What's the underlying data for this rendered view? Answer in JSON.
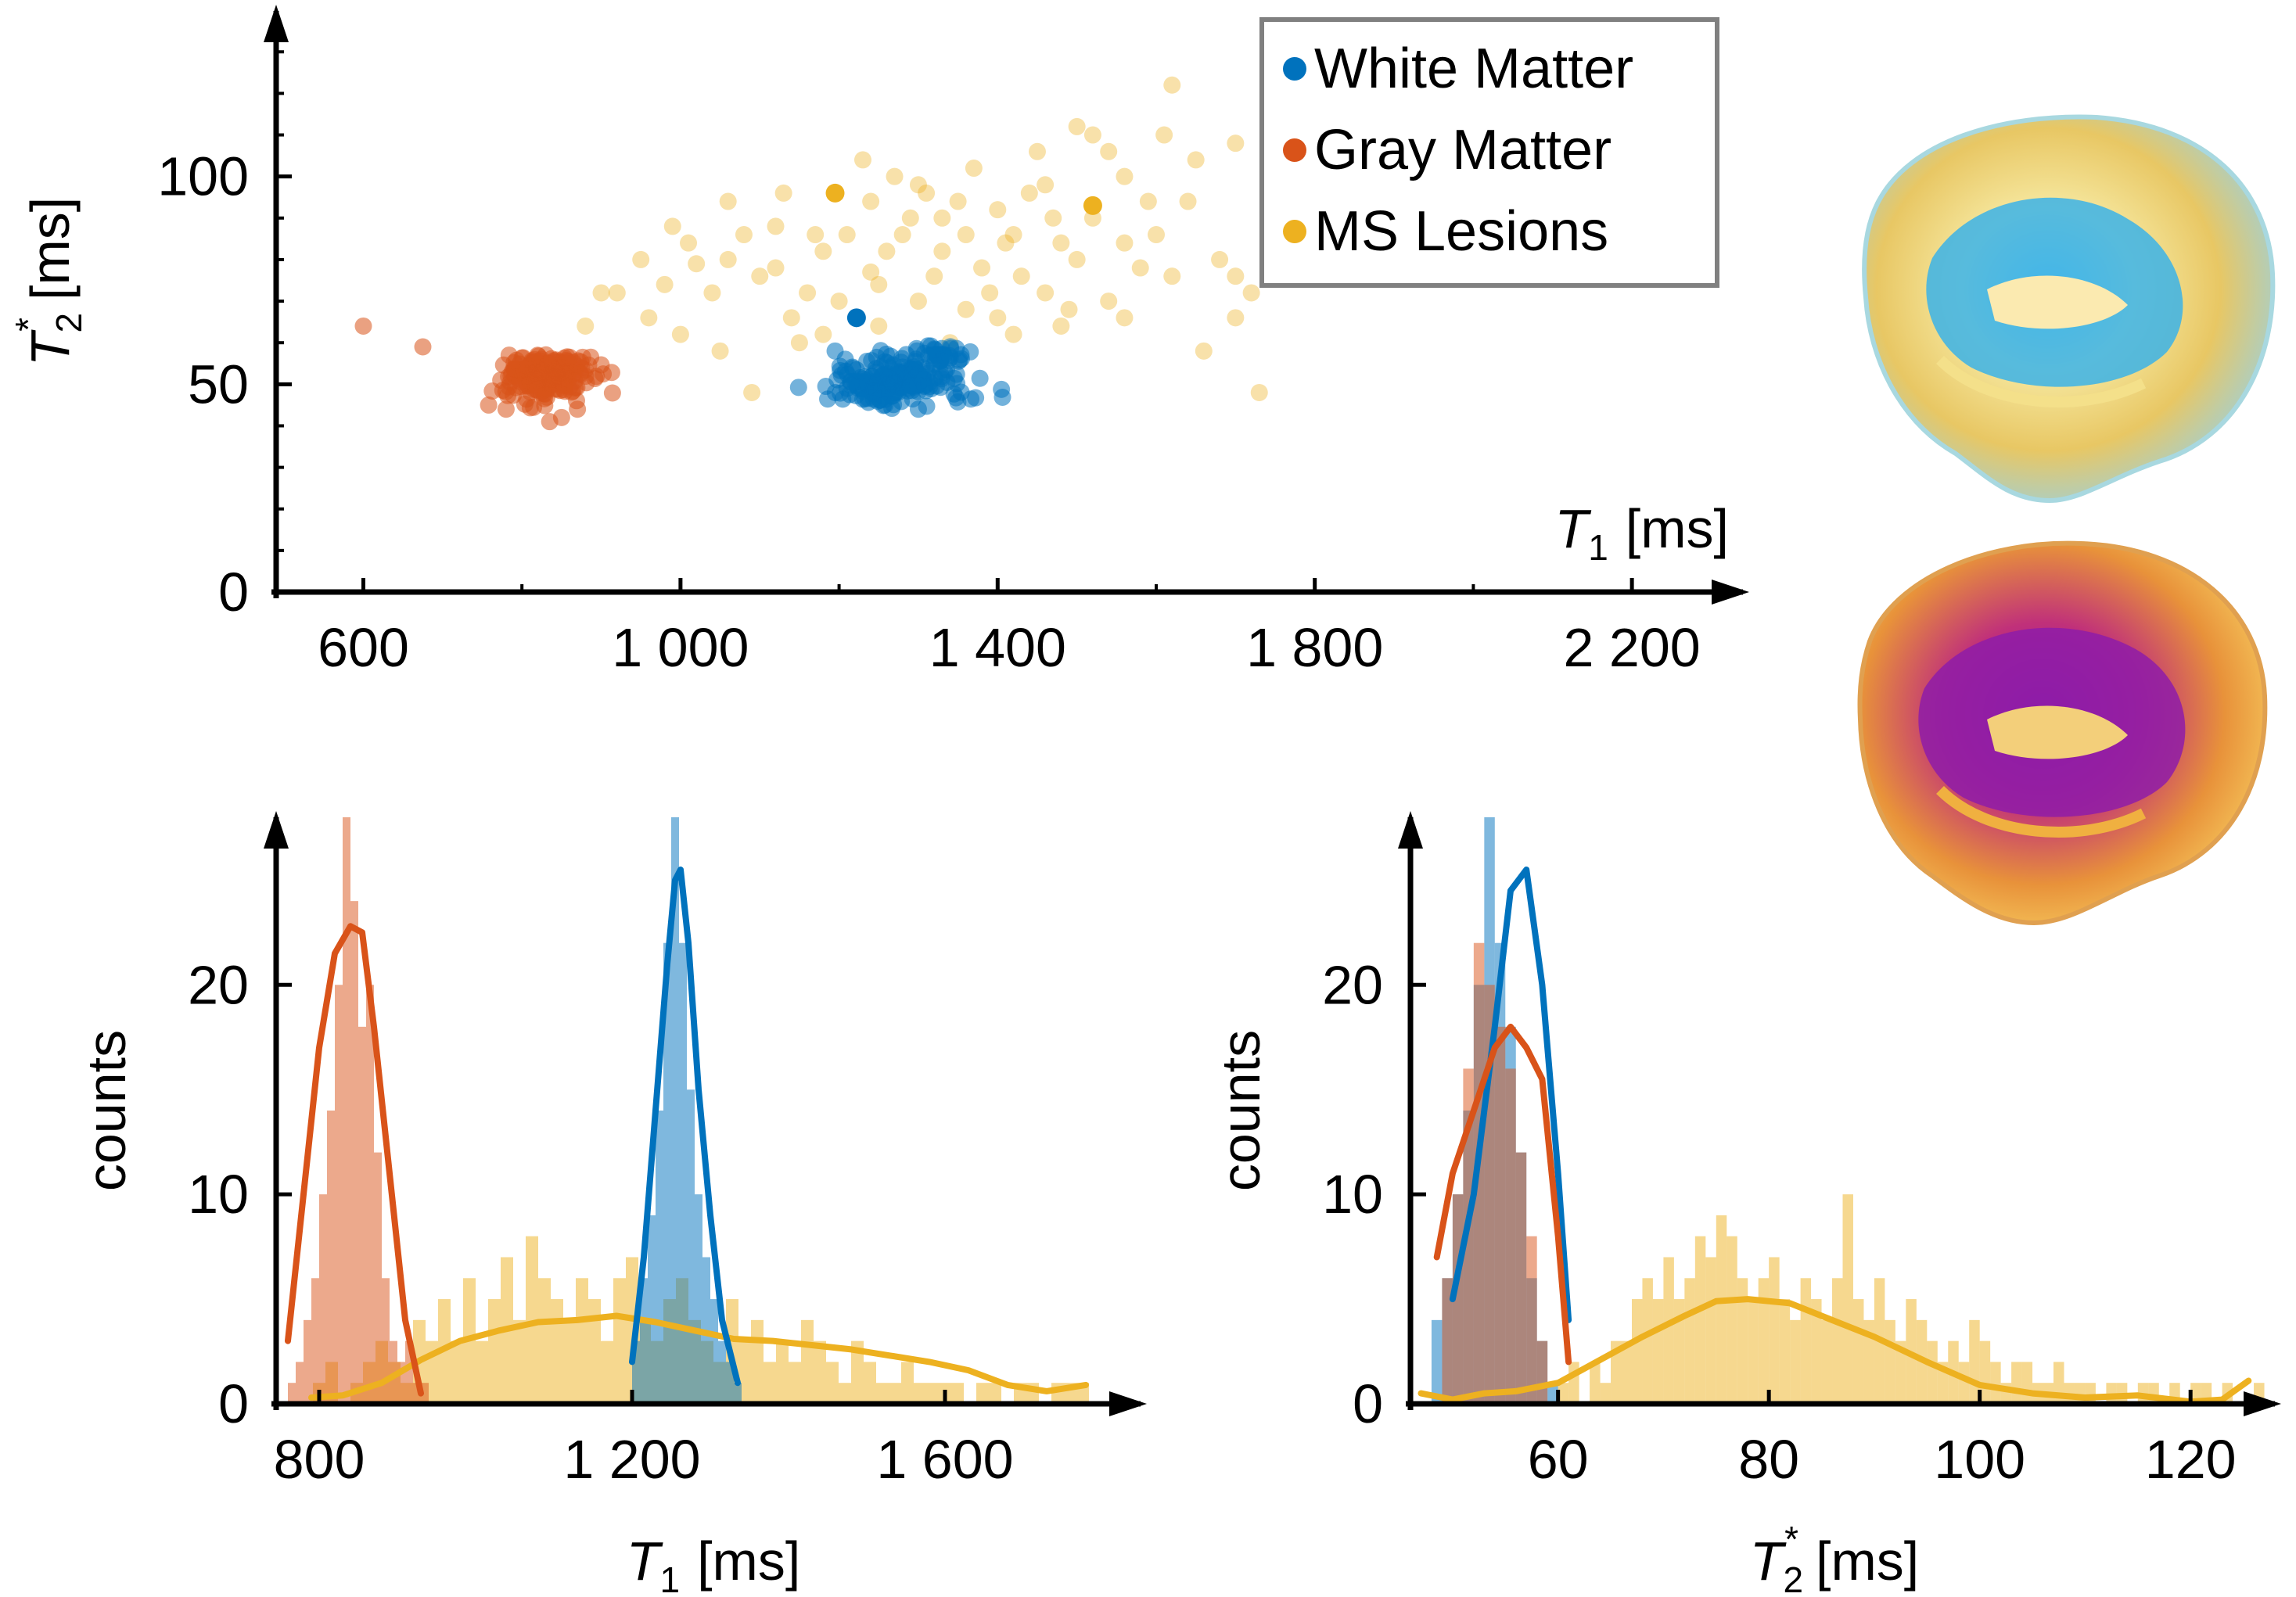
{
  "colors": {
    "white_matter": "#0072bd",
    "gray_matter": "#d95319",
    "ms_lesions": "#edb120",
    "axis": "#000000",
    "legend_border": "#808080"
  },
  "legend": {
    "items": [
      {
        "label": "White Matter",
        "color": "#0072bd"
      },
      {
        "label": "Gray Matter",
        "color": "#d95319"
      },
      {
        "label": "MS Lesions",
        "color": "#edb120"
      }
    ]
  },
  "images": [
    {
      "name": "brain-render-blue",
      "palette": "blue-yellow"
    },
    {
      "name": "brain-render-magma",
      "palette": "purple-orange"
    }
  ],
  "chart_data": [
    {
      "type": "scatter",
      "xlabel_main": "T",
      "xlabel_sub": "1",
      "xlabel_unit": "[ms]",
      "ylabel_main": "T",
      "ylabel_sub": "2",
      "ylabel_sup": "*",
      "ylabel_unit": "[ms]",
      "xlim": [
        490,
        2340
      ],
      "ylim": [
        0,
        150
      ],
      "xticks": [
        600,
        1000,
        1400,
        1800,
        2200
      ],
      "xtick_labels": [
        "600",
        "1 000",
        "1 400",
        "1 800",
        "2 200"
      ],
      "yticks": [
        0,
        50,
        100
      ],
      "ytick_labels": [
        "0",
        "50",
        "100"
      ],
      "legend_position": "top-right",
      "grid": false,
      "series": [
        {
          "name": "White Matter",
          "clusters": [
            {
              "cx": 1275,
              "cy": 51,
              "rx": 70,
              "ry": 5,
              "n": 190
            },
            {
              "cx": 1335,
              "cy": 57,
              "rx": 25,
              "ry": 2,
              "n": 25
            }
          ],
          "points": [
            [
              1222,
              66
            ],
            [
              1195,
              58
            ],
            [
              1258,
              45
            ],
            [
              1300,
              44
            ],
            [
              1210,
              49
            ]
          ]
        },
        {
          "name": "Gray Matter",
          "clusters": [
            {
              "cx": 830,
              "cy": 52,
              "rx": 45,
              "ry": 4.5,
              "n": 210
            }
          ],
          "points": [
            [
              600,
              64
            ],
            [
              675,
              59
            ],
            [
              758,
              45
            ],
            [
              780,
              44
            ],
            [
              835,
              41
            ],
            [
              850,
              42
            ],
            [
              870,
              44
            ]
          ]
        },
        {
          "name": "MS Lesions",
          "points": [
            [
              1195,
              96
            ],
            [
              1520,
              93
            ],
            [
              1810,
              148
            ],
            [
              1700,
              76
            ],
            [
              1760,
              86
            ],
            [
              1620,
              122
            ],
            [
              1650,
              104
            ],
            [
              1900,
              113
            ],
            [
              1860,
              124
            ],
            [
              1780,
              105
            ],
            [
              1450,
              106
            ],
            [
              1520,
              110
            ],
            [
              1300,
              98
            ],
            [
              1180,
              82
            ],
            [
              1100,
              76
            ],
            [
              1050,
              58
            ],
            [
              1020,
              79
            ],
            [
              950,
              80
            ],
            [
              920,
              72
            ],
            [
              990,
              88
            ],
            [
              1060,
              94
            ],
            [
              1120,
              88
            ],
            [
              1160,
              72
            ],
            [
              1240,
              77
            ],
            [
              1280,
              86
            ],
            [
              1330,
              90
            ],
            [
              1370,
              102
            ],
            [
              1400,
              92
            ],
            [
              1430,
              76
            ],
            [
              1480,
              84
            ],
            [
              1560,
              100
            ],
            [
              1600,
              86
            ],
            [
              1660,
              58
            ],
            [
              1720,
              72
            ],
            [
              1730,
              48
            ],
            [
              1700,
              66
            ],
            [
              1560,
              66
            ],
            [
              1480,
              64
            ],
            [
              1420,
              62
            ],
            [
              1360,
              68
            ],
            [
              1300,
              70
            ],
            [
              1250,
              64
            ],
            [
              1200,
              70
            ],
            [
              1140,
              66
            ],
            [
              1090,
              48
            ],
            [
              1060,
              80
            ],
            [
              1010,
              84
            ],
            [
              960,
              66
            ],
            [
              900,
              72
            ],
            [
              880,
              64
            ],
            [
              1230,
              104
            ],
            [
              1330,
              82
            ],
            [
              1390,
              72
            ],
            [
              1440,
              96
            ],
            [
              1500,
              80
            ],
            [
              1540,
              70
            ],
            [
              1580,
              78
            ],
            [
              1640,
              94
            ],
            [
              1680,
              80
            ],
            [
              1750,
              96
            ],
            [
              1800,
              84
            ],
            [
              1840,
              112
            ],
            [
              1880,
              100
            ],
            [
              1920,
              90
            ],
            [
              1130,
              96
            ],
            [
              1170,
              86
            ],
            [
              1210,
              86
            ],
            [
              1260,
              82
            ],
            [
              1320,
              76
            ],
            [
              1360,
              86
            ],
            [
              1410,
              84
            ],
            [
              1460,
              98
            ],
            [
              1500,
              112
            ],
            [
              1540,
              106
            ],
            [
              1610,
              110
            ],
            [
              1700,
              108
            ],
            [
              1520,
              90
            ],
            [
              1460,
              72
            ],
            [
              1400,
              66
            ],
            [
              1340,
              60
            ],
            [
              1290,
              90
            ],
            [
              1240,
              94
            ],
            [
              1180,
              62
            ],
            [
              1120,
              78
            ],
            [
              1080,
              86
            ],
            [
              1040,
              72
            ],
            [
              980,
              74
            ],
            [
              1000,
              62
            ],
            [
              1150,
              60
            ],
            [
              1270,
              100
            ],
            [
              1310,
              96
            ],
            [
              1350,
              94
            ],
            [
              1470,
              90
            ],
            [
              1590,
              94
            ],
            [
              1620,
              76
            ],
            [
              1560,
              84
            ],
            [
              1490,
              68
            ],
            [
              1420,
              86
            ],
            [
              1380,
              78
            ],
            [
              1250,
              74
            ]
          ]
        }
      ]
    },
    {
      "type": "histogram",
      "xlabel_main": "T",
      "xlabel_sub": "1",
      "xlabel_unit": "[ms]",
      "ylabel": "counts",
      "xlim": [
        745,
        1850
      ],
      "ylim": [
        0,
        28
      ],
      "xticks": [
        800,
        1200,
        1600
      ],
      "xtick_labels": [
        "800",
        "1 200",
        "1 600"
      ],
      "yticks": [
        0,
        10,
        20
      ],
      "ytick_labels": [
        "0",
        "10",
        "20"
      ],
      "series": [
        {
          "name": "Gray Matter",
          "bin_start": 760,
          "bin_width": 10,
          "counts": [
            1,
            2,
            4,
            6,
            10,
            14,
            20,
            28,
            24,
            18,
            20,
            12,
            6,
            3,
            2,
            3,
            1,
            1
          ],
          "fit_x": [
            760,
            780,
            800,
            820,
            840,
            855,
            870,
            890,
            910,
            930
          ],
          "fit_y": [
            3,
            10,
            17,
            21.5,
            22.8,
            22.5,
            18,
            11,
            4,
            0.5
          ]
        },
        {
          "name": "White Matter",
          "bin_start": 1200,
          "bin_width": 10,
          "counts": [
            3,
            6,
            9,
            14,
            22,
            28,
            22,
            15,
            10,
            7,
            5,
            3,
            2,
            1
          ],
          "fit_x": [
            1200,
            1215,
            1230,
            1245,
            1255,
            1262,
            1272,
            1285,
            1300,
            1315,
            1335
          ],
          "fit_y": [
            2,
            7,
            14,
            21,
            25,
            25.5,
            22,
            15,
            9,
            4,
            1
          ]
        },
        {
          "name": "MS Lesions",
          "bin_start": 760,
          "bin_width": 16,
          "counts": [
            0,
            0,
            1,
            2,
            0,
            1,
            2,
            3,
            2,
            1,
            4,
            3,
            5,
            3,
            6,
            3,
            5,
            7,
            4,
            8,
            6,
            5,
            4,
            6,
            5,
            3,
            6,
            7,
            4,
            3,
            5,
            6,
            4,
            3,
            2,
            5,
            3,
            4,
            2,
            3,
            2,
            4,
            3,
            2,
            1,
            3,
            2,
            1,
            1,
            2,
            1,
            1,
            1,
            1,
            0,
            1,
            1,
            0,
            1,
            1,
            0,
            1,
            1,
            1,
            0
          ],
          "fit_x": [
            790,
            830,
            880,
            930,
            980,
            1030,
            1080,
            1130,
            1180,
            1230,
            1280,
            1330,
            1380,
            1430,
            1480,
            1530,
            1580,
            1630,
            1680,
            1730,
            1780
          ],
          "fit_y": [
            0.3,
            0.4,
            1.0,
            2.1,
            3.0,
            3.5,
            3.9,
            4.0,
            4.2,
            3.9,
            3.5,
            3.1,
            3.0,
            2.8,
            2.6,
            2.3,
            2.0,
            1.6,
            0.9,
            0.6,
            0.9
          ]
        }
      ]
    },
    {
      "type": "histogram",
      "xlabel_main": "T",
      "xlabel_sub": "2",
      "xlabel_sup": "*",
      "xlabel_unit": "[ms]",
      "ylabel": "counts",
      "xlim": [
        46,
        128
      ],
      "ylim": [
        0,
        28
      ],
      "xticks": [
        60,
        80,
        100,
        120
      ],
      "xtick_labels": [
        "60",
        "80",
        "100",
        "120"
      ],
      "yticks": [
        0,
        10,
        20
      ],
      "ytick_labels": [
        "0",
        "10",
        "20"
      ],
      "series": [
        {
          "name": "White Matter",
          "bin_start": 48,
          "bin_width": 1,
          "counts": [
            4,
            6,
            10,
            14,
            20,
            28,
            22,
            18,
            12,
            6,
            3,
            1
          ],
          "fit_x": [
            50,
            52,
            54,
            55.5,
            57,
            58.5,
            60,
            61
          ],
          "fit_y": [
            5,
            10,
            18,
            24.5,
            25.5,
            20,
            11,
            4
          ]
        },
        {
          "name": "Gray Matter",
          "bin_start": 49,
          "bin_width": 1,
          "counts": [
            6,
            10,
            16,
            22,
            20,
            18,
            16,
            12,
            8,
            3
          ],
          "fit_x": [
            48.5,
            50,
            52,
            54,
            55.5,
            57,
            58.5,
            60,
            61
          ],
          "fit_y": [
            7,
            11,
            14,
            17,
            18,
            17,
            15.5,
            8,
            2
          ]
        },
        {
          "name": "MS Lesions",
          "bin_start": 60,
          "bin_width": 1,
          "counts": [
            1,
            2,
            0,
            2,
            1,
            3,
            3,
            5,
            6,
            5,
            7,
            5,
            6,
            8,
            7,
            9,
            8,
            6,
            5,
            6,
            7,
            5,
            4,
            6,
            5,
            4,
            6,
            10,
            5,
            4,
            6,
            4,
            3,
            5,
            4,
            3,
            2,
            3,
            2,
            4,
            3,
            2,
            1,
            2,
            2,
            1,
            1,
            2,
            1,
            1,
            1,
            0,
            1,
            1,
            0,
            1,
            1,
            0,
            1,
            0,
            1,
            1,
            0,
            1,
            0,
            0,
            1
          ],
          "fit_x": [
            47,
            50,
            53,
            56,
            60,
            64,
            68,
            72,
            75,
            78,
            82,
            86,
            90,
            95,
            100,
            105,
            110,
            115,
            120,
            123,
            125.5
          ],
          "fit_y": [
            0.5,
            0.2,
            0.5,
            0.6,
            1.0,
            2.1,
            3.2,
            4.2,
            4.9,
            5.0,
            4.8,
            4.0,
            3.2,
            2.0,
            0.9,
            0.5,
            0.3,
            0.4,
            0.1,
            0.2,
            1.1
          ]
        }
      ]
    }
  ]
}
